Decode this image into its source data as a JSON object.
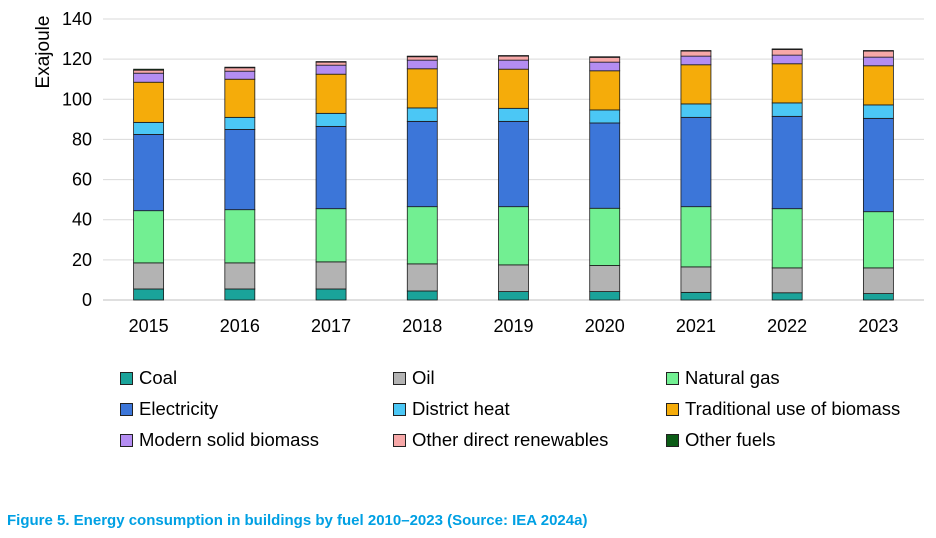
{
  "chart_data": {
    "type": "bar",
    "stacked": true,
    "title": "",
    "xlabel": "",
    "ylabel": "Exajoule",
    "ylim": [
      0,
      140
    ],
    "yticks": [
      0,
      20,
      40,
      60,
      80,
      100,
      120,
      140
    ],
    "grid": true,
    "legend_position": "bottom",
    "categories": [
      "2015",
      "2016",
      "2017",
      "2018",
      "2019",
      "2020",
      "2021",
      "2022",
      "2023"
    ],
    "series": [
      {
        "name": "Coal",
        "color": "#1aa39a",
        "values": [
          5.5,
          5.5,
          5.5,
          4.5,
          4.2,
          4.2,
          3.8,
          3.6,
          3.2
        ]
      },
      {
        "name": "Oil",
        "color": "#b3b3b3",
        "values": [
          13.0,
          13.0,
          13.5,
          13.5,
          13.3,
          13.0,
          12.7,
          12.4,
          12.8
        ]
      },
      {
        "name": "Natural gas",
        "color": "#72ef92",
        "values": [
          26.0,
          26.5,
          26.5,
          28.5,
          29.0,
          28.5,
          30.0,
          29.5,
          28.0
        ]
      },
      {
        "name": "Electricity",
        "color": "#3c76d9",
        "values": [
          38.0,
          40.0,
          41.0,
          42.5,
          42.5,
          42.5,
          44.5,
          46.0,
          46.5
        ]
      },
      {
        "name": "District heat",
        "color": "#4bc7f5",
        "values": [
          6.0,
          6.0,
          6.5,
          6.7,
          6.5,
          6.5,
          6.7,
          6.7,
          6.7
        ]
      },
      {
        "name": "Traditional use of biomass",
        "color": "#f5ac0a",
        "values": [
          20.0,
          19.0,
          19.5,
          19.5,
          19.5,
          19.5,
          19.5,
          19.5,
          19.5
        ]
      },
      {
        "name": "Modern solid biomass",
        "color": "#b48df2",
        "values": [
          4.5,
          4.0,
          4.5,
          4.3,
          4.5,
          4.3,
          4.3,
          4.3,
          4.3
        ]
      },
      {
        "name": "Other direct renewables",
        "color": "#f7a8a8",
        "values": [
          1.5,
          1.7,
          1.5,
          1.7,
          2.0,
          2.4,
          2.5,
          2.8,
          3.0
        ]
      },
      {
        "name": "Other fuels",
        "color": "#0b5c16",
        "values": [
          0.5,
          0.3,
          0.3,
          0.3,
          0.3,
          0.3,
          0.3,
          0.3,
          0.3
        ]
      }
    ]
  },
  "caption": "Figure 5. Energy consumption in buildings by fuel 2010–2023 (Source: IEA 2024a)"
}
